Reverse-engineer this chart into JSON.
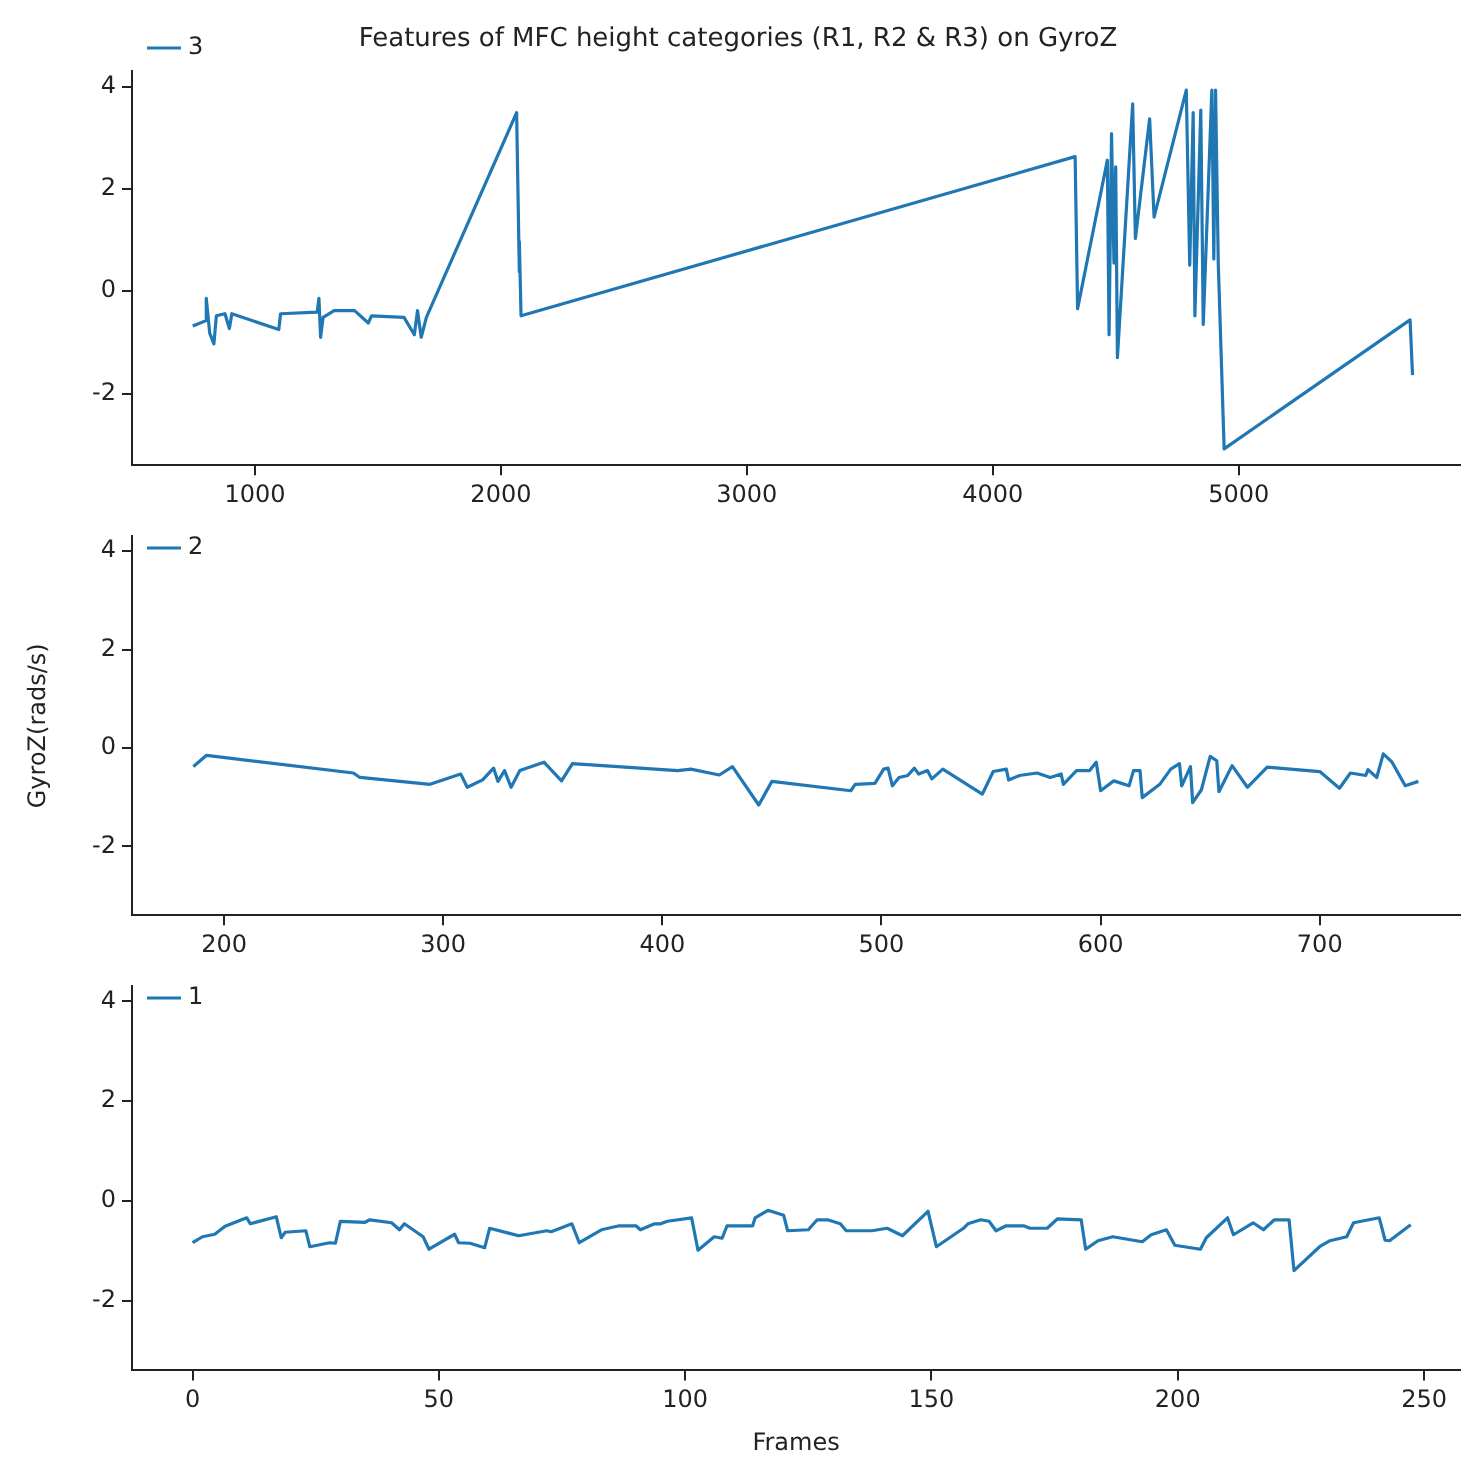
{
  "chart_data": [
    {
      "type": "line",
      "title": "Features of MFC height categories (R1, R2 & R3) on GyroZ",
      "xlim": [
        500,
        5900
      ],
      "xticks": [
        1000,
        2000,
        3000,
        4000,
        5000
      ],
      "ylim": [
        -3.4,
        4.3
      ],
      "yticks": [
        -2,
        0,
        2,
        4
      ],
      "grid": false,
      "legend": "top left",
      "marker": "none",
      "line_style": "solid",
      "series": [
        {
          "name": "3",
          "color": "#1f77b4",
          "x": [
            747,
            809,
            802,
            816,
            833,
            843,
            878,
            896,
            906,
            1097,
            1104,
            1253,
            1260,
            1267,
            1277,
            1322,
            1405,
            1461,
            1474,
            1606,
            1648,
            1661,
            1676,
            1697,
            2064,
            2075,
            2075,
            2082,
            4335,
            4345,
            4466,
            4473,
            4483,
            4493,
            4500,
            4507,
            4569,
            4580,
            4638,
            4656,
            4787,
            4801,
            4815,
            4822,
            4846,
            4856,
            4891,
            4899,
            4906,
            4917,
            4941,
            5697,
            5707
          ],
          "values": [
            -0.68,
            -0.56,
            -0.14,
            -0.82,
            -1.03,
            -0.48,
            -0.44,
            -0.73,
            -0.44,
            -0.75,
            -0.44,
            -0.41,
            -0.14,
            -0.9,
            -0.51,
            -0.38,
            -0.38,
            -0.62,
            -0.48,
            -0.51,
            -0.85,
            -0.38,
            -0.9,
            -0.51,
            3.49,
            0.38,
            0.97,
            -0.48,
            2.63,
            -0.34,
            2.56,
            -0.85,
            3.08,
            0.55,
            2.43,
            -1.3,
            3.66,
            1.03,
            3.37,
            1.45,
            3.93,
            0.51,
            3.49,
            -0.48,
            3.54,
            -0.65,
            3.93,
            0.63,
            3.93,
            0.55,
            -3.08,
            -0.56,
            -1.64
          ]
        }
      ]
    },
    {
      "type": "line",
      "ylabel": "GyroZ(rads/s)",
      "xlim": [
        158,
        764
      ],
      "xticks": [
        200,
        300,
        400,
        500,
        600,
        700
      ],
      "ylim": [
        -3.4,
        4.3
      ],
      "yticks": [
        -2,
        0,
        2,
        4
      ],
      "grid": false,
      "legend": "top left",
      "marker": "none",
      "line_style": "solid",
      "series": [
        {
          "name": "2",
          "color": "#1f77b4",
          "x": [
            186,
            192,
            259,
            262,
            294,
            308,
            311,
            318,
            323,
            325,
            328,
            331,
            335,
            346,
            354,
            359,
            407,
            413,
            426,
            432,
            444,
            450,
            486,
            488,
            497,
            501,
            503,
            505,
            508,
            512,
            515,
            517,
            521,
            523,
            528,
            546,
            551,
            557,
            558,
            563,
            571,
            577,
            582,
            583,
            589,
            595,
            598,
            600,
            606,
            613,
            615,
            618,
            619,
            627,
            632,
            636,
            637,
            641,
            642,
            646,
            650,
            653,
            654,
            660,
            667,
            676,
            700,
            709,
            714,
            721,
            722,
            726,
            729,
            733,
            739,
            745
          ],
          "values": [
            -0.38,
            -0.15,
            -0.51,
            -0.6,
            -0.74,
            -0.53,
            -0.8,
            -0.65,
            -0.41,
            -0.68,
            -0.46,
            -0.8,
            -0.46,
            -0.29,
            -0.67,
            -0.32,
            -0.46,
            -0.43,
            -0.55,
            -0.38,
            -1.16,
            -0.68,
            -0.87,
            -0.74,
            -0.72,
            -0.43,
            -0.41,
            -0.77,
            -0.6,
            -0.56,
            -0.41,
            -0.53,
            -0.46,
            -0.63,
            -0.43,
            -0.94,
            -0.48,
            -0.43,
            -0.65,
            -0.56,
            -0.51,
            -0.6,
            -0.53,
            -0.74,
            -0.46,
            -0.46,
            -0.29,
            -0.87,
            -0.67,
            -0.77,
            -0.46,
            -0.46,
            -1.01,
            -0.74,
            -0.43,
            -0.32,
            -0.77,
            -0.38,
            -1.11,
            -0.85,
            -0.17,
            -0.26,
            -0.89,
            -0.36,
            -0.8,
            -0.39,
            -0.48,
            -0.82,
            -0.51,
            -0.56,
            -0.44,
            -0.6,
            -0.12,
            -0.29,
            -0.77,
            -0.68
          ]
        }
      ]
    },
    {
      "type": "line",
      "xlabel": "Frames",
      "xlim": [
        -12.3,
        257.3
      ],
      "xticks": [
        0,
        50,
        100,
        150,
        200,
        250
      ],
      "ylim": [
        -3.4,
        4.3
      ],
      "yticks": [
        -2,
        0,
        2,
        4
      ],
      "grid": false,
      "legend": "top left",
      "marker": "none",
      "line_style": "solid",
      "series": [
        {
          "name": "1",
          "color": "#1f77b4",
          "x": [
            0,
            2,
            4.5,
            6.6,
            11,
            11.7,
            17,
            18,
            18.8,
            23,
            23.8,
            27.8,
            29,
            30,
            35,
            36,
            40.4,
            42,
            43,
            46.8,
            48,
            53.2,
            54,
            56.3,
            59.3,
            60.3,
            66.2,
            71.9,
            72.8,
            77,
            78.5,
            83,
            86.6,
            90,
            90.9,
            93.8,
            95,
            96.4,
            101.3,
            102.6,
            105.9,
            107.5,
            108.5,
            113.7,
            114.2,
            116.8,
            120,
            120.8,
            125,
            126.8,
            128.9,
            131.5,
            132.7,
            137.9,
            141,
            144.1,
            149.3,
            151,
            156.5,
            157.4,
            160,
            161.7,
            163.1,
            165.2,
            168.7,
            170,
            173.5,
            175.6,
            180.4,
            181.3,
            183.8,
            186.8,
            192.8,
            194.6,
            197.7,
            199.4,
            204.6,
            205.8,
            210.1,
            211.3,
            215.3,
            217.4,
            219.6,
            222.6,
            223.6,
            228.8,
            230.9,
            234.3,
            235.7,
            240.9,
            242.1,
            243,
            247.3
          ],
          "values": [
            -0.84,
            -0.72,
            -0.67,
            -0.51,
            -0.34,
            -0.46,
            -0.32,
            -0.74,
            -0.63,
            -0.6,
            -0.92,
            -0.84,
            -0.85,
            -0.41,
            -0.43,
            -0.38,
            -0.44,
            -0.58,
            -0.46,
            -0.72,
            -0.97,
            -0.67,
            -0.84,
            -0.85,
            -0.94,
            -0.55,
            -0.7,
            -0.6,
            -0.62,
            -0.46,
            -0.84,
            -0.58,
            -0.5,
            -0.5,
            -0.58,
            -0.46,
            -0.46,
            -0.41,
            -0.34,
            -0.99,
            -0.72,
            -0.75,
            -0.5,
            -0.5,
            -0.34,
            -0.19,
            -0.29,
            -0.6,
            -0.58,
            -0.38,
            -0.38,
            -0.46,
            -0.6,
            -0.6,
            -0.55,
            -0.7,
            -0.21,
            -0.92,
            -0.55,
            -0.46,
            -0.38,
            -0.41,
            -0.6,
            -0.5,
            -0.5,
            -0.55,
            -0.55,
            -0.36,
            -0.38,
            -0.97,
            -0.8,
            -0.72,
            -0.82,
            -0.68,
            -0.58,
            -0.89,
            -0.97,
            -0.74,
            -0.34,
            -0.68,
            -0.44,
            -0.58,
            -0.38,
            -0.38,
            -1.4,
            -0.92,
            -0.8,
            -0.72,
            -0.44,
            -0.34,
            -0.79,
            -0.8,
            -0.48
          ]
        }
      ]
    }
  ]
}
